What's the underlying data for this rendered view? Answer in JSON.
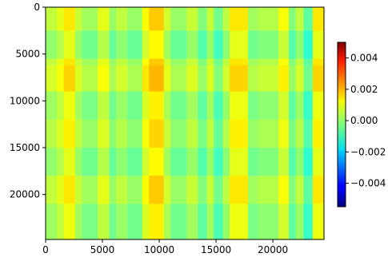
{
  "chart_data": {
    "type": "heatmap",
    "title": "",
    "xlabel": "",
    "ylabel": "",
    "xlim": [
      0,
      24500
    ],
    "ylim": [
      24800,
      0
    ],
    "x_ticks": [
      0,
      5000,
      10000,
      15000,
      20000
    ],
    "x_tick_labels": [
      "0",
      "5000",
      "10000",
      "15000",
      "20000"
    ],
    "y_ticks": [
      0,
      5000,
      10000,
      15000,
      20000
    ],
    "y_tick_labels": [
      "0",
      "5000",
      "10000",
      "15000",
      "20000"
    ],
    "colorbar": {
      "colormap": "jet",
      "vmin": -0.0055,
      "vmax": 0.005,
      "ticks": [
        0.004,
        0.002,
        0.0,
        -0.002,
        -0.004
      ],
      "tick_labels": [
        "0.004",
        "0.002",
        "0.000",
        "−0.002",
        "−0.004"
      ]
    },
    "x_bands": [
      {
        "start": 0,
        "end": 1000,
        "value": 0.00025
      },
      {
        "start": 1000,
        "end": 1600,
        "value": 0.0006
      },
      {
        "start": 1600,
        "end": 2600,
        "value": 0.0011
      },
      {
        "start": 2600,
        "end": 3200,
        "value": 0.0003
      },
      {
        "start": 3200,
        "end": 4600,
        "value": -0.0001
      },
      {
        "start": 4600,
        "end": 5600,
        "value": 0.0006
      },
      {
        "start": 5600,
        "end": 6200,
        "value": -0.0002
      },
      {
        "start": 6200,
        "end": 7200,
        "value": 0.0002
      },
      {
        "start": 7200,
        "end": 8500,
        "value": -0.0002
      },
      {
        "start": 8500,
        "end": 9100,
        "value": 0.0009
      },
      {
        "start": 9100,
        "end": 10400,
        "value": 0.0014
      },
      {
        "start": 10400,
        "end": 11000,
        "value": 0.0004
      },
      {
        "start": 11000,
        "end": 12400,
        "value": -0.0002
      },
      {
        "start": 12400,
        "end": 13400,
        "value": 0.0003
      },
      {
        "start": 13400,
        "end": 14200,
        "value": -0.0004
      },
      {
        "start": 14200,
        "end": 14800,
        "value": 0.0003
      },
      {
        "start": 14800,
        "end": 15600,
        "value": -0.0006
      },
      {
        "start": 15600,
        "end": 16200,
        "value": 0.0002
      },
      {
        "start": 16200,
        "end": 17800,
        "value": 0.0011
      },
      {
        "start": 17800,
        "end": 18700,
        "value": -0.0001
      },
      {
        "start": 18700,
        "end": 20500,
        "value": 0.0001
      },
      {
        "start": 20500,
        "end": 21400,
        "value": 0.0008
      },
      {
        "start": 21400,
        "end": 22000,
        "value": -0.0004
      },
      {
        "start": 22000,
        "end": 22700,
        "value": 0.0002
      },
      {
        "start": 22700,
        "end": 23500,
        "value": -0.0008
      },
      {
        "start": 23500,
        "end": 24500,
        "value": 0.0011
      }
    ],
    "y_bands": [
      {
        "start": 0,
        "end": 2500,
        "value": 0.0002
      },
      {
        "start": 2500,
        "end": 5500,
        "value": -0.0003
      },
      {
        "start": 5500,
        "end": 6200,
        "value": 0.0002
      },
      {
        "start": 6200,
        "end": 9000,
        "value": 0.0004
      },
      {
        "start": 9000,
        "end": 12000,
        "value": -0.0002
      },
      {
        "start": 12000,
        "end": 15000,
        "value": 0.0001
      },
      {
        "start": 15000,
        "end": 18000,
        "value": -0.0003
      },
      {
        "start": 18000,
        "end": 21000,
        "value": 0.0002
      },
      {
        "start": 21000,
        "end": 24800,
        "value": -0.0002
      }
    ]
  }
}
